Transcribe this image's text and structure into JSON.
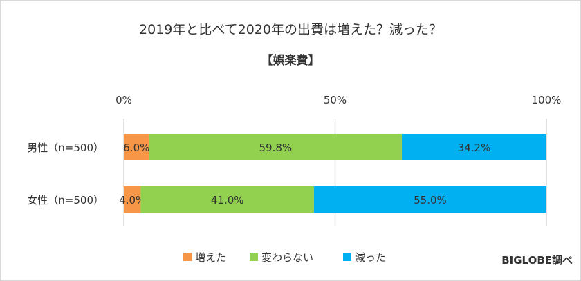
{
  "chart_data": {
    "type": "bar",
    "stacked": true,
    "orientation": "horizontal",
    "title": "2019年と比べて2020年の出費は増えた？減った？",
    "subtitle": "【娯楽費】",
    "categories": [
      "男性（n=500）",
      "女性（n=500）"
    ],
    "series": [
      {
        "name": "増えた",
        "values": [
          6.0,
          4.0
        ],
        "color": "#F79646"
      },
      {
        "name": "変わらない",
        "values": [
          59.8,
          41.0
        ],
        "color": "#92D050"
      },
      {
        "name": "減った",
        "values": [
          34.2,
          55.0
        ],
        "color": "#00B0F0"
      }
    ],
    "labels": [
      [
        "6.0%",
        "4.0%"
      ],
      [
        "59.8%",
        "41.0%"
      ],
      [
        "34.2%",
        "55.0%"
      ]
    ],
    "xlim": [
      0,
      100
    ],
    "xticks": [
      "0%",
      "50%",
      "100%"
    ],
    "grid": true,
    "legend": "bottom",
    "source": "BIGLOBE調べ"
  }
}
